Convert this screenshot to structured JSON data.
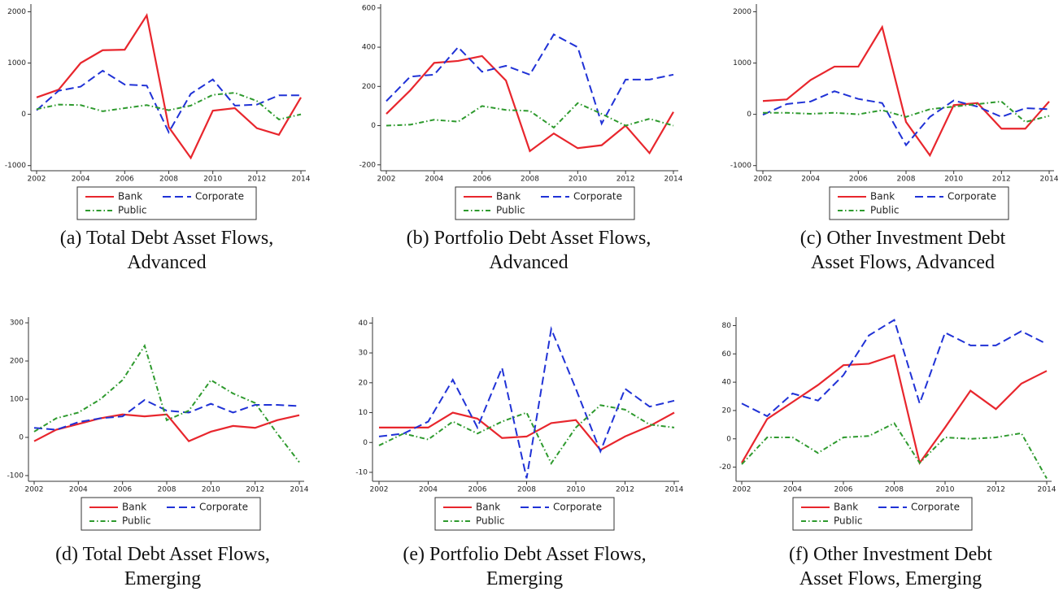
{
  "chart_data": [
    {
      "type": "line",
      "caption": "(a) Total Debt Asset Flows, Advanced",
      "x": [
        2002,
        2003,
        2004,
        2005,
        2006,
        2007,
        2008,
        2009,
        2010,
        2011,
        2012,
        2013,
        2014
      ],
      "xlim": [
        2002,
        2014
      ],
      "xticks": [
        2002,
        2004,
        2006,
        2008,
        2010,
        2012,
        2014
      ],
      "ylim": [
        -1100,
        2150
      ],
      "yticks": [
        -1000,
        0,
        1000,
        2000
      ],
      "series": [
        {
          "name": "Bank",
          "color": "#e8262d",
          "linestyle": "solid",
          "values": [
            330,
            480,
            1000,
            1250,
            1260,
            1930,
            -250,
            -850,
            70,
            120,
            -270,
            -400,
            330
          ]
        },
        {
          "name": "Corporate",
          "color": "#2032d6",
          "linestyle": "dashed",
          "values": [
            80,
            460,
            540,
            850,
            580,
            560,
            -350,
            400,
            680,
            170,
            190,
            370,
            370
          ]
        },
        {
          "name": "Public",
          "color": "#2e9a2e",
          "linestyle": "dashdot",
          "values": [
            100,
            190,
            180,
            60,
            120,
            180,
            80,
            170,
            380,
            420,
            260,
            -100,
            0
          ]
        }
      ]
    },
    {
      "type": "line",
      "caption": "(b) Portfolio Debt Asset Flows, Advanced",
      "x": [
        2002,
        2003,
        2004,
        2005,
        2006,
        2007,
        2008,
        2009,
        2010,
        2011,
        2012,
        2013,
        2014
      ],
      "xlim": [
        2002,
        2014
      ],
      "xticks": [
        2002,
        2004,
        2006,
        2008,
        2010,
        2012,
        2014
      ],
      "ylim": [
        -230,
        620
      ],
      "yticks": [
        -200,
        0,
        200,
        400,
        600
      ],
      "series": [
        {
          "name": "Bank",
          "color": "#e8262d",
          "linestyle": "solid",
          "values": [
            60,
            180,
            320,
            330,
            355,
            230,
            -130,
            -40,
            -115,
            -100,
            0,
            -140,
            70
          ]
        },
        {
          "name": "Corporate",
          "color": "#2032d6",
          "linestyle": "dashed",
          "values": [
            125,
            250,
            260,
            400,
            275,
            305,
            260,
            465,
            400,
            10,
            235,
            235,
            260
          ]
        },
        {
          "name": "Public",
          "color": "#2e9a2e",
          "linestyle": "dashdot",
          "values": [
            0,
            5,
            30,
            20,
            100,
            80,
            75,
            -10,
            115,
            60,
            0,
            35,
            0
          ]
        }
      ]
    },
    {
      "type": "line",
      "caption": "(c) Other Investment Debt Asset Flows, Advanced",
      "x": [
        2002,
        2003,
        2004,
        2005,
        2006,
        2007,
        2008,
        2009,
        2010,
        2011,
        2012,
        2013,
        2014
      ],
      "xlim": [
        2002,
        2014
      ],
      "xticks": [
        2002,
        2004,
        2006,
        2008,
        2010,
        2012,
        2014
      ],
      "ylim": [
        -1100,
        2150
      ],
      "yticks": [
        -1000,
        0,
        1000,
        2000
      ],
      "series": [
        {
          "name": "Bank",
          "color": "#e8262d",
          "linestyle": "solid",
          "values": [
            260,
            290,
            670,
            930,
            930,
            1700,
            -150,
            -800,
            180,
            220,
            -280,
            -280,
            250
          ]
        },
        {
          "name": "Corporate",
          "color": "#2032d6",
          "linestyle": "dashed",
          "values": [
            -10,
            200,
            250,
            450,
            300,
            220,
            -600,
            -50,
            270,
            150,
            -50,
            120,
            100
          ]
        },
        {
          "name": "Public",
          "color": "#2e9a2e",
          "linestyle": "dashdot",
          "values": [
            30,
            30,
            10,
            30,
            0,
            80,
            -50,
            100,
            150,
            200,
            250,
            -150,
            -30
          ]
        }
      ]
    },
    {
      "type": "line",
      "caption": "(d) Total Debt Asset Flows, Emerging",
      "x": [
        2002,
        2003,
        2004,
        2005,
        2006,
        2007,
        2008,
        2009,
        2010,
        2011,
        2012,
        2013,
        2014
      ],
      "xlim": [
        2002,
        2014
      ],
      "xticks": [
        2002,
        2004,
        2006,
        2008,
        2010,
        2012,
        2014
      ],
      "ylim": [
        -115,
        315
      ],
      "yticks": [
        -100,
        0,
        100,
        200,
        300
      ],
      "series": [
        {
          "name": "Bank",
          "color": "#e8262d",
          "linestyle": "solid",
          "values": [
            -10,
            20,
            35,
            50,
            60,
            55,
            60,
            -10,
            15,
            30,
            25,
            45,
            58
          ]
        },
        {
          "name": "Corporate",
          "color": "#2032d6",
          "linestyle": "dashed",
          "values": [
            25,
            20,
            40,
            50,
            55,
            98,
            70,
            65,
            88,
            65,
            85,
            85,
            82
          ]
        },
        {
          "name": "Public",
          "color": "#2e9a2e",
          "linestyle": "dashdot",
          "values": [
            15,
            50,
            65,
            100,
            150,
            240,
            45,
            70,
            150,
            115,
            90,
            10,
            -65
          ]
        }
      ]
    },
    {
      "type": "line",
      "caption": "(e) Portfolio Debt Asset Flows, Emerging",
      "x": [
        2002,
        2003,
        2004,
        2005,
        2006,
        2007,
        2008,
        2009,
        2010,
        2011,
        2012,
        2013,
        2014
      ],
      "xlim": [
        2002,
        2014
      ],
      "xticks": [
        2002,
        2004,
        2006,
        2008,
        2010,
        2012,
        2014
      ],
      "ylim": [
        -13,
        42
      ],
      "yticks": [
        -10,
        0,
        10,
        20,
        30,
        40
      ],
      "series": [
        {
          "name": "Bank",
          "color": "#e8262d",
          "linestyle": "solid",
          "values": [
            5,
            5,
            5,
            10,
            8,
            1.5,
            2,
            6.5,
            7.5,
            -2.5,
            2,
            5.5,
            10
          ]
        },
        {
          "name": "Corporate",
          "color": "#2032d6",
          "linestyle": "dashed",
          "values": [
            2,
            3,
            7,
            21,
            5,
            25,
            -12,
            38,
            18,
            -3,
            18,
            12,
            14
          ]
        },
        {
          "name": "Public",
          "color": "#2e9a2e",
          "linestyle": "dashdot",
          "values": [
            -1,
            3,
            1,
            7,
            3,
            7,
            10,
            -7,
            5,
            12.5,
            11,
            6,
            5
          ]
        }
      ]
    },
    {
      "type": "line",
      "caption": "(f) Other Investment Debt Asset Flows, Emerging",
      "x": [
        2002,
        2003,
        2004,
        2005,
        2006,
        2007,
        2008,
        2009,
        2010,
        2011,
        2012,
        2013,
        2014
      ],
      "xlim": [
        2002,
        2014
      ],
      "xticks": [
        2002,
        2004,
        2006,
        2008,
        2010,
        2012,
        2014
      ],
      "ylim": [
        -30,
        86
      ],
      "yticks": [
        -20,
        0,
        20,
        40,
        60,
        80
      ],
      "series": [
        {
          "name": "Bank",
          "color": "#e8262d",
          "linestyle": "solid",
          "values": [
            -17,
            14,
            26,
            38,
            52,
            53,
            59,
            -17,
            8,
            34,
            21,
            39,
            48
          ]
        },
        {
          "name": "Corporate",
          "color": "#2032d6",
          "linestyle": "dashed",
          "values": [
            25,
            16,
            32,
            27,
            45,
            73,
            84,
            25,
            75,
            66,
            66,
            76,
            67
          ]
        },
        {
          "name": "Public",
          "color": "#2e9a2e",
          "linestyle": "dashdot",
          "values": [
            -18,
            1,
            1,
            -10,
            1,
            2,
            11,
            -17,
            1,
            0,
            1,
            4,
            -28
          ]
        }
      ]
    }
  ]
}
